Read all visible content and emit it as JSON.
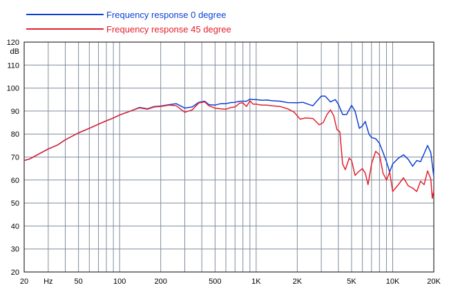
{
  "chart_data": {
    "type": "line",
    "xlabel": "",
    "ylabel": "",
    "y_unit_label": "dB",
    "x_unit_label": "Hz",
    "x_scale": "log",
    "xlim": [
      20,
      20000
    ],
    "ylim": [
      20,
      120
    ],
    "grid": true,
    "legend_placement": "top-left",
    "colors": {
      "grid": "#7f8c9d",
      "axis": "#000000"
    },
    "y_ticks": [
      {
        "value": 20,
        "label": "20"
      },
      {
        "value": 30,
        "label": "30"
      },
      {
        "value": 40,
        "label": "40"
      },
      {
        "value": 50,
        "label": "50"
      },
      {
        "value": 60,
        "label": "60"
      },
      {
        "value": 70,
        "label": "70"
      },
      {
        "value": 80,
        "label": "80"
      },
      {
        "value": 90,
        "label": "90"
      },
      {
        "value": 100,
        "label": "100"
      },
      {
        "value": 110,
        "label": "110"
      },
      {
        "value": 120,
        "label": "120"
      }
    ],
    "x_tick_labels": [
      {
        "value": 20,
        "label": "20"
      },
      {
        "value": 30,
        "label": "Hz"
      },
      {
        "value": 50,
        "label": "50"
      },
      {
        "value": 100,
        "label": "100"
      },
      {
        "value": 200,
        "label": "200"
      },
      {
        "value": 500,
        "label": "500"
      },
      {
        "value": 1000,
        "label": "1K"
      },
      {
        "value": 2000,
        "label": "2K"
      },
      {
        "value": 5000,
        "label": "5K"
      },
      {
        "value": 10000,
        "label": "10K"
      },
      {
        "value": 20000,
        "label": "20K"
      }
    ],
    "x_gridlines": [
      20,
      30,
      40,
      50,
      60,
      70,
      80,
      90,
      100,
      200,
      300,
      400,
      500,
      600,
      700,
      800,
      900,
      1000,
      2000,
      3000,
      4000,
      5000,
      6000,
      7000,
      8000,
      9000,
      10000,
      20000
    ],
    "series": [
      {
        "name": "Frequency response 0 degree",
        "color": "#0a3fd6",
        "points": [
          [
            20,
            68.5
          ],
          [
            22,
            69.2
          ],
          [
            25,
            71
          ],
          [
            30,
            73.5
          ],
          [
            35,
            75.2
          ],
          [
            40,
            77.5
          ],
          [
            50,
            80.5
          ],
          [
            60,
            82.5
          ],
          [
            70,
            84.3
          ],
          [
            80,
            85.8
          ],
          [
            90,
            87
          ],
          [
            100,
            88.3
          ],
          [
            120,
            90
          ],
          [
            140,
            91.6
          ],
          [
            160,
            91
          ],
          [
            180,
            92
          ],
          [
            200,
            92.2
          ],
          [
            230,
            92.8
          ],
          [
            260,
            93.2
          ],
          [
            300,
            91.3
          ],
          [
            340,
            91.8
          ],
          [
            380,
            93.8
          ],
          [
            420,
            94.3
          ],
          [
            450,
            92.8
          ],
          [
            500,
            92.6
          ],
          [
            550,
            93.2
          ],
          [
            600,
            93.2
          ],
          [
            650,
            93.7
          ],
          [
            700,
            93.8
          ],
          [
            760,
            94.3
          ],
          [
            800,
            94.3
          ],
          [
            850,
            94.3
          ],
          [
            900,
            95.2
          ],
          [
            950,
            95
          ],
          [
            1000,
            95
          ],
          [
            1100,
            94.7
          ],
          [
            1200,
            94.8
          ],
          [
            1300,
            94.5
          ],
          [
            1500,
            94.3
          ],
          [
            1700,
            93.7
          ],
          [
            2000,
            93.6
          ],
          [
            2200,
            93.8
          ],
          [
            2400,
            93
          ],
          [
            2600,
            92.3
          ],
          [
            2800,
            94.5
          ],
          [
            3000,
            96.5
          ],
          [
            3200,
            96.5
          ],
          [
            3500,
            94
          ],
          [
            3800,
            95
          ],
          [
            4000,
            93
          ],
          [
            4300,
            88.5
          ],
          [
            4600,
            88.5
          ],
          [
            5000,
            92.5
          ],
          [
            5300,
            90
          ],
          [
            5700,
            82.5
          ],
          [
            6000,
            83.5
          ],
          [
            6300,
            85.5
          ],
          [
            6700,
            80
          ],
          [
            7000,
            78.5
          ],
          [
            7500,
            78
          ],
          [
            8000,
            76
          ],
          [
            8500,
            72
          ],
          [
            9000,
            68
          ],
          [
            9500,
            63.5
          ],
          [
            10000,
            67
          ],
          [
            11000,
            69.5
          ],
          [
            12000,
            71
          ],
          [
            13000,
            69
          ],
          [
            14000,
            66
          ],
          [
            15000,
            68.5
          ],
          [
            16000,
            68
          ],
          [
            17000,
            71.5
          ],
          [
            18000,
            75
          ],
          [
            19000,
            72
          ],
          [
            20000,
            61.5
          ]
        ]
      },
      {
        "name": "Frequency response 45 degree",
        "color": "#e3202c",
        "points": [
          [
            20,
            68.5
          ],
          [
            22,
            69.2
          ],
          [
            25,
            71
          ],
          [
            30,
            73.5
          ],
          [
            35,
            75.2
          ],
          [
            40,
            77.5
          ],
          [
            50,
            80.5
          ],
          [
            60,
            82.5
          ],
          [
            70,
            84.3
          ],
          [
            80,
            85.8
          ],
          [
            90,
            87
          ],
          [
            100,
            88.3
          ],
          [
            120,
            90
          ],
          [
            140,
            91.4
          ],
          [
            160,
            90.8
          ],
          [
            180,
            91.8
          ],
          [
            200,
            92
          ],
          [
            230,
            92.6
          ],
          [
            260,
            92.3
          ],
          [
            300,
            89.5
          ],
          [
            340,
            90.5
          ],
          [
            380,
            93.5
          ],
          [
            420,
            94
          ],
          [
            450,
            92.3
          ],
          [
            500,
            91.3
          ],
          [
            550,
            91
          ],
          [
            600,
            90.8
          ],
          [
            650,
            91.5
          ],
          [
            700,
            91.8
          ],
          [
            760,
            93.5
          ],
          [
            800,
            93.5
          ],
          [
            850,
            92
          ],
          [
            900,
            94.5
          ],
          [
            950,
            93
          ],
          [
            1000,
            93
          ],
          [
            1100,
            92.6
          ],
          [
            1200,
            92.6
          ],
          [
            1300,
            92.3
          ],
          [
            1500,
            92
          ],
          [
            1700,
            91
          ],
          [
            1900,
            89.5
          ],
          [
            2100,
            86.5
          ],
          [
            2300,
            87
          ],
          [
            2600,
            86.8
          ],
          [
            2900,
            84
          ],
          [
            3100,
            85
          ],
          [
            3300,
            88.5
          ],
          [
            3500,
            90.5
          ],
          [
            3700,
            88
          ],
          [
            3900,
            82
          ],
          [
            4100,
            81
          ],
          [
            4300,
            67
          ],
          [
            4500,
            64.5
          ],
          [
            4800,
            69.5
          ],
          [
            5000,
            68.5
          ],
          [
            5300,
            62
          ],
          [
            5600,
            63.5
          ],
          [
            6000,
            65
          ],
          [
            6300,
            63
          ],
          [
            6600,
            58
          ],
          [
            7000,
            67
          ],
          [
            7500,
            72.5
          ],
          [
            8000,
            71
          ],
          [
            8500,
            63
          ],
          [
            9000,
            60
          ],
          [
            9500,
            63.5
          ],
          [
            10000,
            55
          ],
          [
            11000,
            58
          ],
          [
            12000,
            61
          ],
          [
            13000,
            57.5
          ],
          [
            14000,
            56.5
          ],
          [
            15000,
            55
          ],
          [
            16000,
            59.5
          ],
          [
            17000,
            58
          ],
          [
            18000,
            64
          ],
          [
            19000,
            60.5
          ],
          [
            19500,
            52
          ],
          [
            20000,
            55.5
          ]
        ]
      }
    ]
  }
}
